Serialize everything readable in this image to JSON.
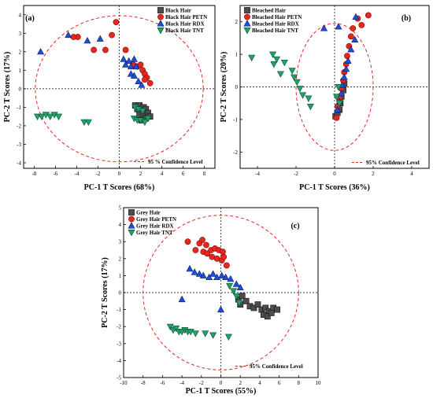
{
  "chart_data": [
    {
      "type": "scatter",
      "panel_label": "(a)",
      "xlabel": "PC-1 T Scores (68%)",
      "ylabel": "PC-2 T Scores (17%)",
      "xlim": [
        -9,
        9
      ],
      "ylim": [
        -4.3,
        4.5
      ],
      "xticks": [
        -8,
        -6,
        -4,
        -2,
        0,
        2,
        4,
        6,
        8
      ],
      "yticks": [
        -4,
        -3,
        -2,
        -1,
        0,
        1,
        2,
        3,
        4
      ],
      "ellipse": {
        "rx": 7.9,
        "ry": 3.95,
        "label": "95 % Confidence Level",
        "color": "#e8261f"
      },
      "legend_position": "top-right",
      "series": [
        {
          "name": "Black Hair",
          "marker": "square",
          "color": "#4d4d4d",
          "points": [
            [
              1.5,
              -0.9
            ],
            [
              1.9,
              -0.9
            ],
            [
              2.3,
              -1.0
            ],
            [
              1.7,
              -1.1
            ],
            [
              2.1,
              -1.2
            ],
            [
              2.5,
              -1.1
            ],
            [
              1.9,
              -1.4
            ],
            [
              2.3,
              -1.5
            ],
            [
              2.1,
              -1.7
            ],
            [
              2.5,
              -1.6
            ],
            [
              2.7,
              -1.3
            ],
            [
              2.9,
              -1.5
            ]
          ]
        },
        {
          "name": "Black Hair PETN",
          "marker": "circle",
          "color": "#e8261f",
          "points": [
            [
              -0.3,
              3.6
            ],
            [
              -0.7,
              2.9
            ],
            [
              -2.4,
              2.1
            ],
            [
              -1.3,
              2.1
            ],
            [
              -3.9,
              2.8
            ],
            [
              -4.3,
              2.8
            ],
            [
              0.6,
              2.1
            ],
            [
              1.3,
              1.3
            ],
            [
              1.7,
              1.2
            ],
            [
              2.0,
              1.3
            ],
            [
              2.2,
              1.0
            ],
            [
              2.4,
              0.8
            ],
            [
              2.6,
              0.6
            ],
            [
              2.9,
              0.3
            ],
            [
              2.4,
              0.5
            ]
          ]
        },
        {
          "name": "Black Hair RDX",
          "marker": "triangle-up",
          "color": "#1f4fd8",
          "points": [
            [
              -7.4,
              2.0
            ],
            [
              -4.8,
              2.9
            ],
            [
              -3.0,
              2.6
            ],
            [
              -1.8,
              2.7
            ],
            [
              0.4,
              1.6
            ],
            [
              0.6,
              1.3
            ],
            [
              0.9,
              1.5
            ],
            [
              1.1,
              1.2
            ],
            [
              1.4,
              1.6
            ],
            [
              1.6,
              1.2
            ],
            [
              1.1,
              0.8
            ],
            [
              1.4,
              0.7
            ],
            [
              1.8,
              0.4
            ],
            [
              2.1,
              0.2
            ]
          ]
        },
        {
          "name": "Black Hair TNT",
          "marker": "triangle-down",
          "color": "#1fa36a",
          "points": [
            [
              -7.7,
              -1.5
            ],
            [
              -7.3,
              -1.5
            ],
            [
              -6.9,
              -1.4
            ],
            [
              -6.5,
              -1.5
            ],
            [
              -6.1,
              -1.4
            ],
            [
              -5.7,
              -1.5
            ],
            [
              -3.3,
              -1.8
            ],
            [
              -2.9,
              -1.8
            ],
            [
              1.5,
              -1.0
            ],
            [
              1.8,
              -1.1
            ],
            [
              2.2,
              -1.2
            ],
            [
              1.4,
              -1.6
            ],
            [
              1.7,
              -1.7
            ],
            [
              2.0,
              -1.7
            ],
            [
              2.4,
              -1.8
            ],
            [
              2.7,
              -1.6
            ]
          ]
        }
      ]
    },
    {
      "type": "scatter",
      "panel_label": "(b)",
      "xlabel": "PC-1 T Scores (36%)",
      "ylabel": "PC-2 T Scores (20%)",
      "xlim": [
        -4.9,
        4.9
      ],
      "ylim": [
        -2.5,
        2.5
      ],
      "xticks": [
        -4,
        -2,
        0,
        2,
        4
      ],
      "yticks": [
        -2,
        -1,
        0,
        1,
        2
      ],
      "ellipse": {
        "rx": 2.0,
        "ry": 1.95,
        "label": "95% Confidence Level",
        "color": "#e8261f"
      },
      "legend_position": "top-left",
      "series": [
        {
          "name": "Bleached Hair",
          "marker": "square",
          "color": "#4d4d4d",
          "points": [
            [
              0.05,
              -0.9
            ],
            [
              0.15,
              -0.8
            ],
            [
              0.25,
              -0.7
            ],
            [
              0.3,
              -0.5
            ],
            [
              0.35,
              -0.3
            ],
            [
              0.45,
              -0.1
            ],
            [
              0.5,
              0.1
            ]
          ]
        },
        {
          "name": "Bleached Hair PETN",
          "marker": "circle",
          "color": "#e8261f",
          "points": [
            [
              1.2,
              2.1
            ],
            [
              1.75,
              2.2
            ],
            [
              1.4,
              1.9
            ],
            [
              0.95,
              1.8
            ],
            [
              0.85,
              1.55
            ],
            [
              0.75,
              1.25
            ],
            [
              0.65,
              0.95
            ],
            [
              0.6,
              0.7
            ],
            [
              0.5,
              0.45
            ],
            [
              0.45,
              0.2
            ],
            [
              0.35,
              -0.05
            ],
            [
              0.25,
              -0.35
            ],
            [
              0.15,
              -0.6
            ],
            [
              0.1,
              -0.95
            ]
          ]
        },
        {
          "name": "Bleached Hair RDX",
          "marker": "triangle-up",
          "color": "#1f4fd8",
          "points": [
            [
              1.1,
              2.15
            ],
            [
              0.2,
              1.85
            ],
            [
              -0.55,
              1.8
            ],
            [
              1.05,
              1.45
            ],
            [
              0.85,
              1.15
            ],
            [
              0.7,
              0.8
            ],
            [
              0.6,
              0.55
            ],
            [
              0.5,
              0.3
            ],
            [
              0.4,
              0.05
            ],
            [
              0.35,
              -0.2
            ],
            [
              0.25,
              -0.45
            ],
            [
              0.15,
              -0.7
            ]
          ]
        },
        {
          "name": "Bleached Hair TNT",
          "marker": "triangle-down",
          "color": "#1fa36a",
          "points": [
            [
              -4.3,
              0.9
            ],
            [
              -3.2,
              1.0
            ],
            [
              -3.15,
              0.7
            ],
            [
              -3.0,
              0.85
            ],
            [
              -2.8,
              0.4
            ],
            [
              -2.6,
              0.75
            ],
            [
              -2.2,
              0.5
            ],
            [
              -2.1,
              0.3
            ],
            [
              -1.95,
              0.15
            ],
            [
              -1.8,
              -0.05
            ],
            [
              -1.65,
              -0.25
            ],
            [
              -1.35,
              -0.35
            ],
            [
              -1.25,
              -0.6
            ],
            [
              0.2,
              0.0
            ],
            [
              0.25,
              -0.5
            ],
            [
              0.1,
              -0.3
            ]
          ]
        }
      ]
    },
    {
      "type": "scatter",
      "panel_label": "(c)",
      "xlabel": "PC-1 T Scores (55%)",
      "ylabel": "PC-2 T Scores (17%)",
      "xlim": [
        -10,
        10
      ],
      "ylim": [
        -5,
        5
      ],
      "xticks": [
        -10,
        -8,
        -6,
        -4,
        -2,
        0,
        2,
        4,
        6,
        8,
        10
      ],
      "yticks": [
        -5,
        -4,
        -3,
        -2,
        -1,
        0,
        1,
        2,
        3,
        4,
        5
      ],
      "ellipse": {
        "rx": 8.0,
        "ry": 4.55,
        "label": "95% Confidence Level",
        "color": "#e8261f"
      },
      "legend_position": "top-left",
      "series": [
        {
          "name": "Grey Hair",
          "marker": "square",
          "color": "#4d4d4d",
          "points": [
            [
              1.8,
              -0.4
            ],
            [
              2.2,
              -0.2
            ],
            [
              2.0,
              -0.7
            ],
            [
              2.6,
              -0.5
            ],
            [
              3.0,
              -0.8
            ],
            [
              3.4,
              -0.9
            ],
            [
              3.8,
              -0.7
            ],
            [
              4.2,
              -1.0
            ],
            [
              4.6,
              -0.9
            ],
            [
              5.0,
              -1.1
            ],
            [
              5.4,
              -0.9
            ],
            [
              5.8,
              -1.0
            ],
            [
              4.4,
              -1.3
            ],
            [
              4.8,
              -1.4
            ],
            [
              5.2,
              -1.2
            ]
          ]
        },
        {
          "name": "Grey Hair PETN",
          "marker": "circle",
          "color": "#e8261f",
          "points": [
            [
              -3.4,
              3.0
            ],
            [
              -2.2,
              2.9
            ],
            [
              -1.9,
              3.1
            ],
            [
              -1.5,
              2.8
            ],
            [
              -1.0,
              2.5
            ],
            [
              -0.6,
              2.6
            ],
            [
              -0.2,
              2.5
            ],
            [
              0.2,
              2.4
            ],
            [
              -1.8,
              2.4
            ],
            [
              -1.4,
              2.3
            ],
            [
              -0.9,
              2.1
            ],
            [
              -0.4,
              2.0
            ],
            [
              0.1,
              1.9
            ],
            [
              0.6,
              1.6
            ],
            [
              -2.6,
              2.5
            ],
            [
              0.3,
              2.1
            ]
          ]
        },
        {
          "name": "Grey Hair RDX",
          "marker": "triangle-up",
          "color": "#1f4fd8",
          "points": [
            [
              -3.2,
              1.4
            ],
            [
              -2.7,
              1.2
            ],
            [
              -2.2,
              1.1
            ],
            [
              -1.8,
              1.0
            ],
            [
              -1.2,
              0.9
            ],
            [
              -0.8,
              1.1
            ],
            [
              -0.4,
              0.9
            ],
            [
              0.1,
              1.0
            ],
            [
              0.5,
              0.9
            ],
            [
              1.0,
              0.8
            ],
            [
              1.6,
              0.5
            ],
            [
              2.0,
              0.3
            ],
            [
              -4.0,
              -0.4
            ],
            [
              0.0,
              -1.0
            ]
          ]
        },
        {
          "name": "Grey Hair TNT",
          "marker": "triangle-down",
          "color": "#1fa36a",
          "points": [
            [
              -5.2,
              -2.0
            ],
            [
              -4.9,
              -2.2
            ],
            [
              -4.6,
              -2.1
            ],
            [
              -4.3,
              -2.3
            ],
            [
              -4.0,
              -2.3
            ],
            [
              -3.7,
              -2.2
            ],
            [
              -3.4,
              -2.3
            ],
            [
              -3.1,
              -2.3
            ],
            [
              -2.6,
              -2.4
            ],
            [
              -1.6,
              -2.4
            ],
            [
              -0.8,
              -2.5
            ],
            [
              0.8,
              -2.6
            ],
            [
              0.9,
              0.4
            ],
            [
              1.3,
              0.1
            ],
            [
              1.6,
              -0.2
            ],
            [
              1.9,
              -0.6
            ]
          ]
        }
      ]
    }
  ]
}
